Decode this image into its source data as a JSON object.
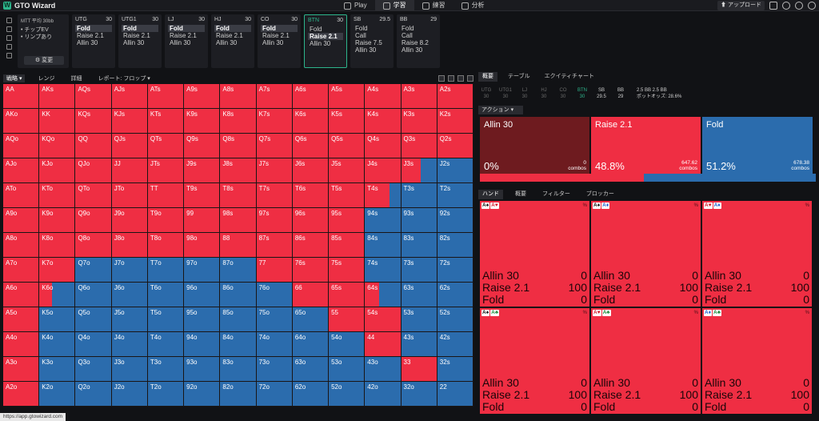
{
  "app": {
    "title": "GTO Wizard"
  },
  "nav": [
    {
      "label": "Play",
      "icon": "spade-icon",
      "active": false
    },
    {
      "label": "学習",
      "icon": "graduation-cap-icon",
      "active": true
    },
    {
      "label": "練習",
      "icon": "gamepad-icon",
      "active": false
    },
    {
      "label": "分析",
      "icon": "bulb-icon",
      "active": false
    }
  ],
  "topright": {
    "upload_label": "アップロード"
  },
  "info_card": {
    "title": "MTT 平均 30bb",
    "lines": [
      "• チップEV",
      "• リンプあり"
    ],
    "button": "変更"
  },
  "positions": [
    {
      "name": "UTG",
      "stack": "30",
      "actions": [
        "Fold",
        "Raise 2.1",
        "Allin 30"
      ],
      "selected": 0,
      "active": false
    },
    {
      "name": "UTG1",
      "stack": "30",
      "actions": [
        "Fold",
        "Raise 2.1",
        "Allin 30"
      ],
      "selected": 0,
      "active": false
    },
    {
      "name": "LJ",
      "stack": "30",
      "actions": [
        "Fold",
        "Raise 2.1",
        "Allin 30"
      ],
      "selected": 0,
      "active": false
    },
    {
      "name": "HJ",
      "stack": "30",
      "actions": [
        "Fold",
        "Raise 2.1",
        "Allin 30"
      ],
      "selected": 0,
      "active": false
    },
    {
      "name": "CO",
      "stack": "30",
      "actions": [
        "Fold",
        "Raise 2.1",
        "Allin 30"
      ],
      "selected": 0,
      "active": false
    },
    {
      "name": "BTN",
      "stack": "30",
      "actions": [
        "Fold",
        "Raise 2.1",
        "Allin 30"
      ],
      "selected": 1,
      "active": true
    },
    {
      "name": "SB",
      "stack": "29.5",
      "actions": [
        "Fold",
        "Call",
        "Raise 7.5",
        "Allin 30"
      ],
      "selected": -1,
      "active": false
    },
    {
      "name": "BB",
      "stack": "29",
      "actions": [
        "Fold",
        "Call",
        "Raise 8.2",
        "Allin 30"
      ],
      "selected": -1,
      "active": false
    }
  ],
  "matrix_toolbar": {
    "tabs": [
      "戦略",
      "レンジ",
      "詳細",
      "レポート: フロップ"
    ]
  },
  "ranks": [
    "A",
    "K",
    "Q",
    "J",
    "T",
    "9",
    "8",
    "7",
    "6",
    "5",
    "4",
    "3",
    "2"
  ],
  "matrix_fold": [
    [
      0,
      0,
      0,
      0,
      0,
      0,
      0,
      0,
      0,
      0,
      0,
      0,
      0
    ],
    [
      0,
      0,
      0,
      0,
      0,
      0,
      0,
      0,
      0,
      0,
      0,
      0,
      0
    ],
    [
      0,
      0,
      0,
      0,
      0,
      0,
      0,
      0,
      0,
      0,
      0,
      0,
      0
    ],
    [
      0,
      0,
      0,
      0,
      0,
      0,
      0,
      0,
      0,
      0,
      0,
      0.45,
      1
    ],
    [
      0,
      0,
      0,
      0,
      0,
      0,
      0,
      0,
      0,
      0,
      0.3,
      1,
      1
    ],
    [
      0,
      0,
      0,
      0,
      0,
      0,
      0,
      0,
      0,
      0,
      1,
      1,
      1
    ],
    [
      0,
      0,
      0,
      0,
      0,
      0,
      0,
      0,
      0,
      0,
      1,
      1,
      1
    ],
    [
      0,
      0,
      1,
      1,
      1,
      1,
      1,
      0,
      0,
      0,
      1,
      1,
      1
    ],
    [
      0,
      0.65,
      1,
      1,
      1,
      1,
      1,
      1,
      0,
      0,
      0.6,
      1,
      1
    ],
    [
      0,
      1,
      1,
      1,
      1,
      1,
      1,
      1,
      1,
      0,
      0,
      1,
      1
    ],
    [
      0,
      1,
      1,
      1,
      1,
      1,
      1,
      1,
      1,
      1,
      0,
      1,
      1
    ],
    [
      0,
      1,
      1,
      1,
      1,
      1,
      1,
      1,
      1,
      1,
      1,
      0,
      1
    ],
    [
      0,
      1,
      1,
      1,
      1,
      1,
      1,
      1,
      1,
      1,
      1,
      1,
      1
    ]
  ],
  "right_tabs": [
    "概要",
    "テーブル",
    "エクイティチャート"
  ],
  "seats": [
    {
      "name": "UTG",
      "stack": "30",
      "state": "off"
    },
    {
      "name": "UTG1",
      "stack": "30",
      "state": "off"
    },
    {
      "name": "LJ",
      "stack": "30",
      "state": "off"
    },
    {
      "name": "HJ",
      "stack": "30",
      "state": "off"
    },
    {
      "name": "CO",
      "stack": "30",
      "state": "off"
    },
    {
      "name": "BTN",
      "stack": "30",
      "state": "btn"
    },
    {
      "name": "SB",
      "stack": "29.5",
      "state": "on"
    },
    {
      "name": "BB",
      "stack": "29",
      "state": "on"
    }
  ],
  "pot": {
    "line1": "2.5 BB  2.5 BB",
    "line2": "ポットオッズ: 28.6%"
  },
  "action_dropdown": "アクション",
  "actions": [
    {
      "name": "Allin 30",
      "pct": "0%",
      "combos": "0",
      "combos_label": "combos",
      "color": "#6e1b1f"
    },
    {
      "name": "Raise 2.1",
      "pct": "48.8%",
      "combos": "647.62",
      "combos_label": "combos",
      "color": "#ef2e43"
    },
    {
      "name": "Fold",
      "pct": "51.2%",
      "combos": "678.38",
      "combos_label": "combos",
      "color": "#2b6cad"
    }
  ],
  "freq_bar": [
    {
      "share": 48.8,
      "color": "#ef2e43"
    },
    {
      "share": 51.2,
      "color": "#2b6cad"
    }
  ],
  "hand_tabs": [
    "ハンド",
    "概要",
    "フィルター",
    "ブロッカー"
  ],
  "combos": [
    {
      "cards": [
        "A♠",
        "A♥"
      ],
      "pct": "%",
      "rows": [
        [
          "Allin 30",
          "0"
        ],
        [
          "Raise 2.1",
          "100"
        ],
        [
          "Fold",
          "0"
        ]
      ]
    },
    {
      "cards": [
        "A♠",
        "A♦"
      ],
      "pct": "%",
      "rows": [
        [
          "Allin 30",
          "0"
        ],
        [
          "Raise 2.1",
          "100"
        ],
        [
          "Fold",
          "0"
        ]
      ]
    },
    {
      "cards": [
        "A♥",
        "A♦"
      ],
      "pct": "%",
      "rows": [
        [
          "Allin 30",
          "0"
        ],
        [
          "Raise 2.1",
          "100"
        ],
        [
          "Fold",
          "0"
        ]
      ]
    },
    {
      "cards": [
        "A♠",
        "A♣"
      ],
      "pct": "%",
      "rows": [
        [
          "Allin 30",
          "0"
        ],
        [
          "Raise 2.1",
          "100"
        ],
        [
          "Fold",
          "0"
        ]
      ]
    },
    {
      "cards": [
        "A♥",
        "A♣"
      ],
      "pct": "%",
      "rows": [
        [
          "Allin 30",
          "0"
        ],
        [
          "Raise 2.1",
          "100"
        ],
        [
          "Fold",
          "0"
        ]
      ]
    },
    {
      "cards": [
        "A♦",
        "A♣"
      ],
      "pct": "%",
      "rows": [
        [
          "Allin 30",
          "0"
        ],
        [
          "Raise 2.1",
          "100"
        ],
        [
          "Fold",
          "0"
        ]
      ]
    }
  ],
  "status_url": "https://app.gtowizard.com",
  "colors": {
    "raise": "#ef2e43",
    "fold": "#2b6cad",
    "accent": "#2db58c"
  }
}
